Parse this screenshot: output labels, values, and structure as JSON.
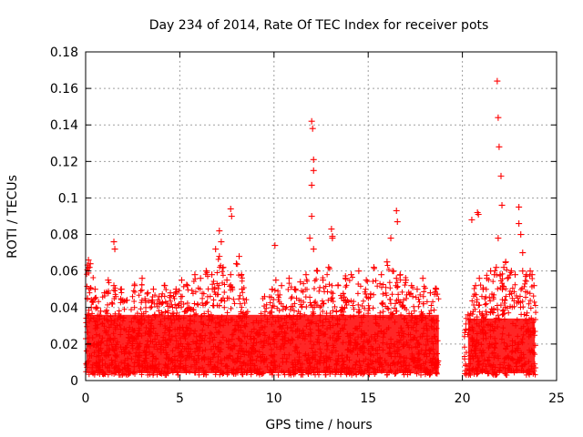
{
  "chart_data": {
    "type": "scatter",
    "title": "Day 234 of 2014, Rate Of TEC Index for receiver pots",
    "xlabel": "GPS time / hours",
    "ylabel": "ROTI / TECUs",
    "xlim": [
      0,
      25
    ],
    "ylim": [
      0,
      0.18
    ],
    "xticks": [
      0,
      5,
      10,
      15,
      20,
      25
    ],
    "xtick_labels": [
      "0",
      "5",
      "10",
      "15",
      "20",
      "25"
    ],
    "yticks": [
      0,
      0.02,
      0.04,
      0.06,
      0.08,
      0.1,
      0.12,
      0.14,
      0.16,
      0.18
    ],
    "ytick_labels": [
      "0",
      "0.02",
      "0.04",
      "0.06",
      "0.08",
      "0.1",
      "0.12",
      "0.14",
      "0.16",
      "0.18"
    ],
    "grid": true,
    "marker": "+",
    "series_color": "#ff0000",
    "series": [
      {
        "name": "ROTI",
        "x": [
          0.1,
          0.2,
          0.3,
          0.5,
          0.8,
          1.0,
          1.2,
          1.4,
          1.5,
          1.6,
          1.9,
          2.2,
          2.6,
          3.0,
          3.3,
          3.6,
          3.9,
          4.2,
          4.5,
          4.8,
          5.1,
          5.4,
          5.8,
          6.1,
          6.4,
          6.7,
          6.9,
          7.1,
          7.3,
          7.5,
          7.7,
          8.0,
          8.3,
          9.5,
          9.9,
          10.1,
          10.4,
          10.8,
          11.1,
          11.4,
          11.7,
          11.9,
          12.0,
          12.1,
          12.3,
          12.6,
          12.9,
          13.1,
          13.4,
          13.8,
          14.1,
          14.5,
          14.9,
          15.3,
          15.7,
          16.0,
          16.3,
          16.5,
          16.7,
          17.0,
          17.3,
          17.6,
          17.9,
          18.3,
          18.6,
          20.3,
          20.5,
          20.7,
          20.9,
          21.1,
          21.3,
          21.5,
          21.7,
          21.8,
          21.9,
          22.0,
          22.2,
          22.4,
          22.6,
          22.8,
          23.0,
          23.2,
          23.4,
          23.6,
          23.8,
          0.15,
          0.25,
          1.5,
          1.55,
          7.1,
          7.2,
          7.7,
          7.75,
          8.15,
          10.05,
          12.0,
          12.05,
          12.1,
          12.0,
          12.1,
          13.05,
          13.1,
          16.2,
          16.5,
          16.55,
          20.8,
          20.85,
          21.85,
          21.9,
          21.95,
          22.05,
          22.1,
          22.3,
          23.0,
          23.1,
          23.2,
          23.7
        ],
        "y": [
          0.045,
          0.062,
          0.04,
          0.05,
          0.038,
          0.048,
          0.055,
          0.042,
          0.052,
          0.046,
          0.05,
          0.044,
          0.052,
          0.056,
          0.048,
          0.05,
          0.046,
          0.052,
          0.048,
          0.05,
          0.055,
          0.052,
          0.058,
          0.056,
          0.06,
          0.058,
          0.072,
          0.068,
          0.062,
          0.055,
          0.058,
          0.064,
          0.05,
          0.046,
          0.05,
          0.055,
          0.052,
          0.056,
          0.05,
          0.054,
          0.058,
          0.078,
          0.09,
          0.072,
          0.06,
          0.055,
          0.062,
          0.078,
          0.052,
          0.056,
          0.058,
          0.06,
          0.055,
          0.062,
          0.058,
          0.065,
          0.06,
          0.056,
          0.058,
          0.055,
          0.052,
          0.05,
          0.056,
          0.048,
          0.05,
          0.036,
          0.088,
          0.052,
          0.056,
          0.05,
          0.056,
          0.06,
          0.058,
          0.062,
          0.078,
          0.058,
          0.062,
          0.056,
          0.06,
          0.058,
          0.086,
          0.06,
          0.058,
          0.06,
          0.052,
          0.066,
          0.064,
          0.076,
          0.072,
          0.082,
          0.076,
          0.094,
          0.09,
          0.068,
          0.074,
          0.142,
          0.138,
          0.121,
          0.107,
          0.115,
          0.083,
          0.079,
          0.078,
          0.093,
          0.087,
          0.092,
          0.091,
          0.164,
          0.144,
          0.128,
          0.112,
          0.096,
          0.065,
          0.095,
          0.08,
          0.07,
          0.058
        ]
      }
    ]
  }
}
